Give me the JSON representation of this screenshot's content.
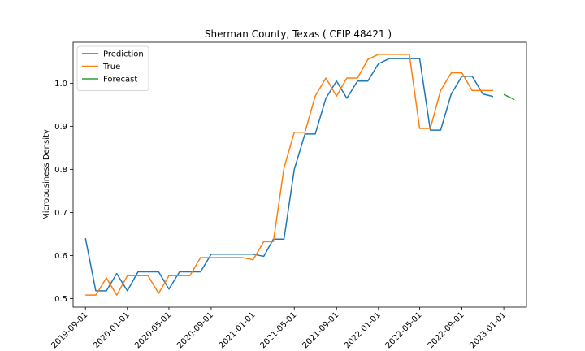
{
  "chart_data": {
    "type": "line",
    "title": "Sherman County, Texas ( CFIP 48421 )",
    "xlabel": "",
    "ylabel": "Microbusiness Density",
    "ylim": [
      0.48,
      1.095
    ],
    "xlim": [
      "2019-07-27",
      "2023-03-08"
    ],
    "yticks": [
      0.5,
      0.6,
      0.7,
      0.8,
      0.9,
      1.0
    ],
    "ytick_labels": [
      "0.5",
      "0.6",
      "0.7",
      "0.8",
      "0.9",
      "1.0"
    ],
    "xticks": [
      "2019-09-01",
      "2020-01-01",
      "2020-05-01",
      "2020-09-01",
      "2021-01-01",
      "2021-05-01",
      "2021-09-01",
      "2022-01-01",
      "2022-05-01",
      "2022-09-01",
      "2023-01-01"
    ],
    "xtick_labels": [
      "2019-09-01",
      "2020-01-01",
      "2020-05-01",
      "2020-09-01",
      "2021-01-01",
      "2021-05-01",
      "2021-09-01",
      "2022-01-01",
      "2022-05-01",
      "2022-09-01",
      "2023-01-01"
    ],
    "grid": false,
    "legend_position": "top-left",
    "series": [
      {
        "name": "Prediction",
        "color": "#1f77b4",
        "x": [
          "2019-09-01",
          "2019-10-01",
          "2019-11-01",
          "2019-12-01",
          "2020-01-01",
          "2020-02-01",
          "2020-03-01",
          "2020-04-01",
          "2020-05-01",
          "2020-06-01",
          "2020-07-01",
          "2020-08-01",
          "2020-09-01",
          "2020-10-01",
          "2020-11-01",
          "2020-12-01",
          "2021-01-01",
          "2021-02-01",
          "2021-03-01",
          "2021-04-01",
          "2021-05-01",
          "2021-06-01",
          "2021-07-01",
          "2021-08-01",
          "2021-09-01",
          "2021-10-01",
          "2021-11-01",
          "2021-12-01",
          "2022-01-01",
          "2022-02-01",
          "2022-03-01",
          "2022-04-01",
          "2022-05-01",
          "2022-06-01",
          "2022-07-01",
          "2022-08-01",
          "2022-09-01",
          "2022-10-01",
          "2022-11-01",
          "2022-12-01"
        ],
        "values": [
          0.64,
          0.518,
          0.518,
          0.558,
          0.518,
          0.562,
          0.562,
          0.562,
          0.522,
          0.562,
          0.562,
          0.562,
          0.603,
          0.603,
          0.603,
          0.603,
          0.603,
          0.598,
          0.638,
          0.638,
          0.8,
          0.882,
          0.882,
          0.965,
          1.005,
          0.965,
          1.005,
          1.005,
          1.045,
          1.057,
          1.057,
          1.057,
          1.057,
          0.891,
          0.891,
          0.975,
          1.016,
          1.016,
          0.975,
          0.969
        ]
      },
      {
        "name": "True",
        "color": "#ff7f0e",
        "x": [
          "2019-09-01",
          "2019-10-01",
          "2019-11-01",
          "2019-12-01",
          "2020-01-01",
          "2020-02-01",
          "2020-03-01",
          "2020-04-01",
          "2020-05-01",
          "2020-06-01",
          "2020-07-01",
          "2020-08-01",
          "2020-09-01",
          "2020-10-01",
          "2020-11-01",
          "2020-12-01",
          "2021-01-01",
          "2021-02-01",
          "2021-03-01",
          "2021-04-01",
          "2021-05-01",
          "2021-06-01",
          "2021-07-01",
          "2021-08-01",
          "2021-09-01",
          "2021-10-01",
          "2021-11-01",
          "2021-12-01",
          "2022-01-01",
          "2022-02-01",
          "2022-03-01",
          "2022-04-01",
          "2022-05-01",
          "2022-06-01",
          "2022-07-01",
          "2022-08-01",
          "2022-09-01",
          "2022-10-01",
          "2022-11-01",
          "2022-12-01"
        ],
        "values": [
          0.508,
          0.508,
          0.548,
          0.508,
          0.553,
          0.553,
          0.553,
          0.512,
          0.553,
          0.553,
          0.553,
          0.595,
          0.595,
          0.595,
          0.595,
          0.595,
          0.59,
          0.632,
          0.632,
          0.803,
          0.886,
          0.886,
          0.97,
          1.012,
          0.97,
          1.012,
          1.012,
          1.055,
          1.067,
          1.067,
          1.067,
          1.067,
          0.895,
          0.895,
          0.983,
          1.024,
          1.024,
          0.983,
          0.983,
          0.983
        ]
      },
      {
        "name": "Forecast",
        "color": "#2ca02c",
        "x": [
          "2023-01-01",
          "2023-02-01"
        ],
        "values": [
          0.974,
          0.962
        ]
      }
    ]
  }
}
